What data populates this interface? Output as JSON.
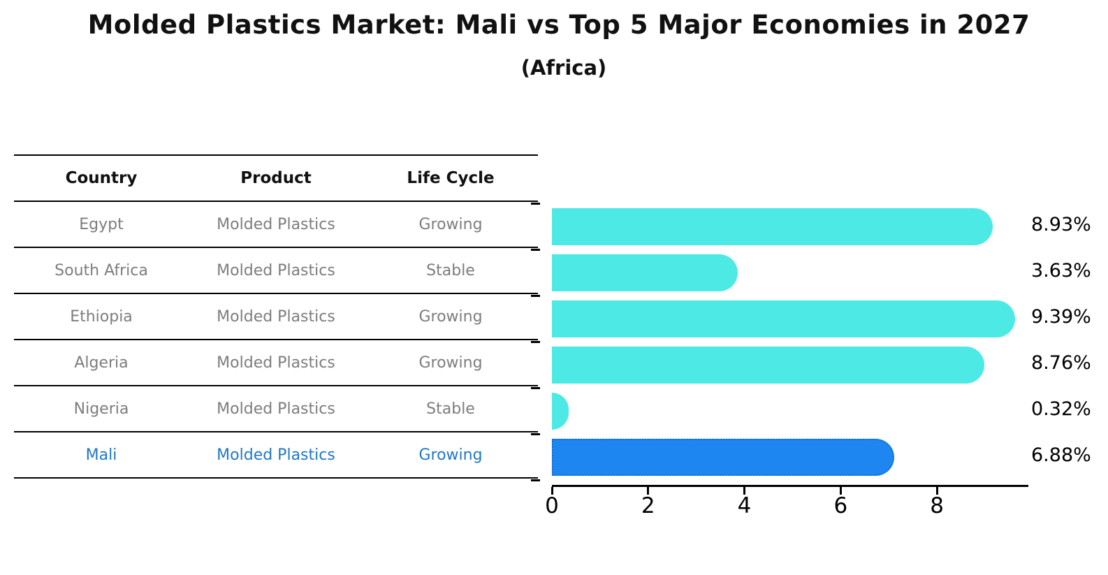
{
  "title": "Molded Plastics Market: Mali vs Top 5 Major Economies in 2027",
  "subtitle": "(Africa)",
  "table": {
    "headers": [
      "Country",
      "Product",
      "Life Cycle"
    ],
    "rows": [
      {
        "country": "Egypt",
        "product": "Molded Plastics",
        "life_cycle": "Growing"
      },
      {
        "country": "South Africa",
        "product": "Molded Plastics",
        "life_cycle": "Stable"
      },
      {
        "country": "Ethiopia",
        "product": "Molded Plastics",
        "life_cycle": "Growing"
      },
      {
        "country": "Algeria",
        "product": "Molded Plastics",
        "life_cycle": "Growing"
      },
      {
        "country": "Nigeria",
        "product": "Molded Plastics",
        "life_cycle": "Stable"
      },
      {
        "country": "Mali",
        "product": "Molded Plastics",
        "life_cycle": "Growing"
      }
    ],
    "highlighted_row": "Mali"
  },
  "chart_data": {
    "type": "bar",
    "orientation": "horizontal",
    "title": "Molded Plastics Market: Mali vs Top 5 Major Economies in 2027",
    "subtitle": "(Africa)",
    "categories": [
      "Egypt",
      "South Africa",
      "Ethiopia",
      "Algeria",
      "Nigeria",
      "Mali"
    ],
    "values": [
      8.93,
      3.63,
      9.39,
      8.76,
      0.32,
      6.88
    ],
    "value_labels": [
      "8.93%",
      "3.63%",
      "9.39%",
      "8.76%",
      "0.32%",
      "6.88%"
    ],
    "unit": "%",
    "x_ticks": [
      "0",
      "2",
      "4",
      "6",
      "8"
    ],
    "xlim": [
      0,
      9.9
    ],
    "grid": false,
    "legend": false,
    "highlight_index": 5,
    "bar_color": "#4DE9E4",
    "highlight_bar_color": "#1E86F0",
    "highlight_edge_color": "#0F6CD4",
    "highlight_text_color": "#1F78C8",
    "label_color": "#000000",
    "muted_text_color": "#7D7D7D"
  }
}
